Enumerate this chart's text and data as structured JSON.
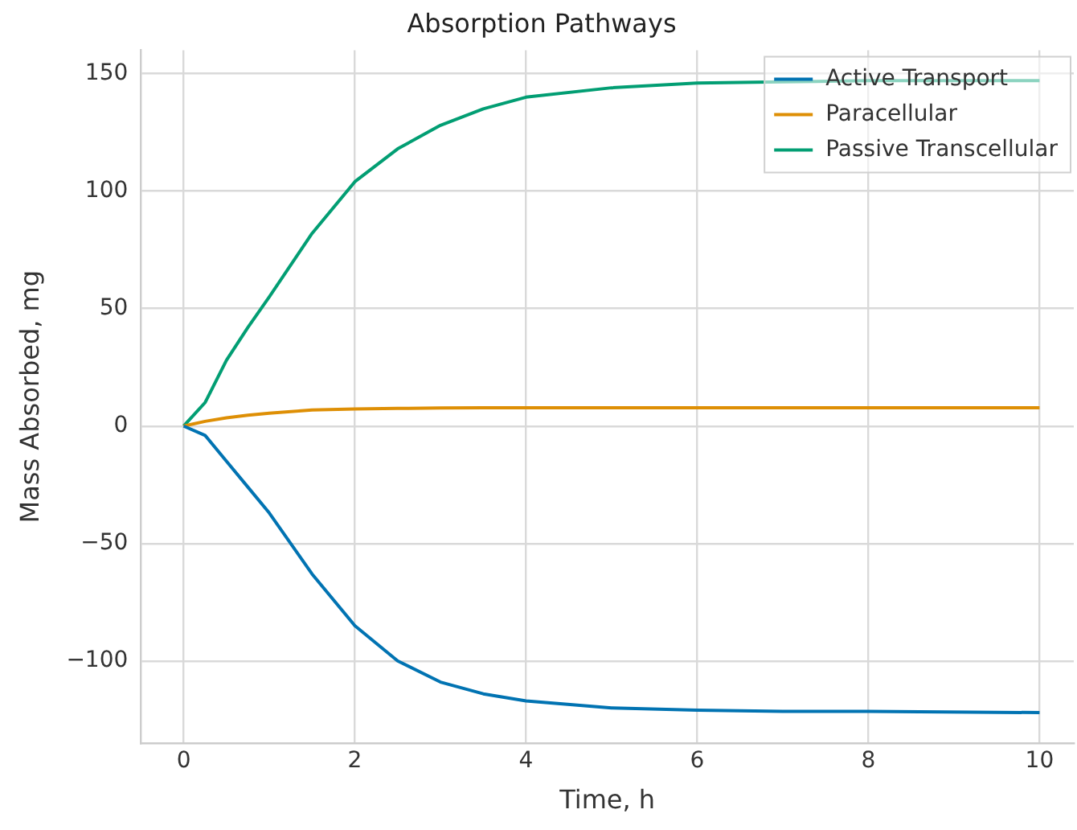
{
  "chart_data": {
    "type": "line",
    "title": "Absorption Pathways",
    "xlabel": "Time, h",
    "ylabel": "Mass Absorbed, mg",
    "x": [
      0,
      0.25,
      0.5,
      0.75,
      1,
      1.5,
      2,
      2.5,
      3,
      3.5,
      4,
      5,
      6,
      7,
      8,
      10
    ],
    "series": [
      {
        "name": "Active Transport",
        "color": "#0173b2",
        "values": [
          0,
          -4,
          -15,
          -26,
          -37,
          -63,
          -85,
          -100,
          -109,
          -114,
          -117,
          -120,
          -121,
          -121.5,
          -121.5,
          -122
        ]
      },
      {
        "name": "Paracellular",
        "color": "#de8f05",
        "values": [
          0,
          2,
          3.5,
          4.6,
          5.5,
          6.8,
          7.3,
          7.5,
          7.7,
          7.8,
          7.8,
          7.8,
          7.8,
          7.8,
          7.8,
          7.8
        ]
      },
      {
        "name": "Passive Transcellular",
        "color": "#029e73",
        "values": [
          0,
          10,
          28,
          42,
          55,
          82,
          104,
          118,
          128,
          135,
          140,
          144,
          146,
          146.5,
          147,
          147
        ]
      }
    ],
    "xlim": [
      -0.5,
      10.4
    ],
    "xticks": [
      0,
      2,
      4,
      6,
      8,
      10
    ],
    "ylim": [
      -135,
      160
    ],
    "yticks": [
      -100,
      -50,
      0,
      50,
      100,
      150
    ],
    "grid": true,
    "legend": "top right",
    "marker": "none",
    "line_style": "solid"
  }
}
